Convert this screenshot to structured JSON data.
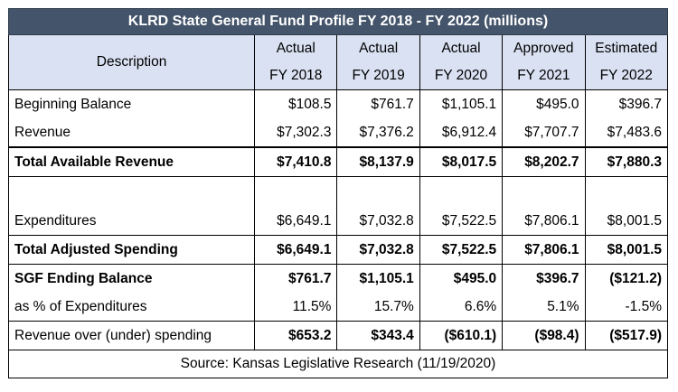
{
  "title": "KLRD State General Fund Profile FY 2018 - FY 2022 (millions)",
  "header": {
    "description": "Description",
    "columns": [
      {
        "line1": "Actual",
        "line2": "FY 2018"
      },
      {
        "line1": "Actual",
        "line2": "FY 2019"
      },
      {
        "line1": "Actual",
        "line2": "FY 2020"
      },
      {
        "line1": "Approved",
        "line2": "FY 2021"
      },
      {
        "line1": "Estimated",
        "line2": "FY 2022"
      }
    ]
  },
  "rows": {
    "beginning_balance": {
      "label": "Beginning Balance",
      "values": [
        "$108.5",
        "$761.7",
        "$1,105.1",
        "$495.0",
        "$396.7"
      ]
    },
    "revenue": {
      "label": "Revenue",
      "values": [
        "$7,302.3",
        "$7,376.2",
        "$6,912.4",
        "$7,707.7",
        "$7,483.6"
      ]
    },
    "total_available_revenue": {
      "label": "Total Available Revenue",
      "values": [
        "$7,410.8",
        "$8,137.9",
        "$8,017.5",
        "$8,202.7",
        "$7,880.3"
      ]
    },
    "expenditures": {
      "label": "Expenditures",
      "values": [
        "$6,649.1",
        "$7,032.8",
        "$7,522.5",
        "$7,806.1",
        "$8,001.5"
      ]
    },
    "total_adjusted_spending": {
      "label": "Total Adjusted Spending",
      "values": [
        "$6,649.1",
        "$7,032.8",
        "$7,522.5",
        "$7,806.1",
        "$8,001.5"
      ]
    },
    "sgf_ending_balance": {
      "label": "SGF Ending Balance",
      "values": [
        "$761.7",
        "$1,105.1",
        "$495.0",
        "$396.7",
        "($121.2)"
      ]
    },
    "pct_of_expenditures": {
      "label": "as % of Expenditures",
      "values": [
        "11.5%",
        "15.7%",
        "6.6%",
        "5.1%",
        "-1.5%"
      ]
    },
    "revenue_over_under": {
      "label": "Revenue over (under) spending",
      "values": [
        "$653.2",
        "$343.4",
        "($610.1)",
        "($98.4)",
        "($517.9)"
      ]
    }
  },
  "source": "Source: Kansas Legislative Research (11/19/2020)"
}
